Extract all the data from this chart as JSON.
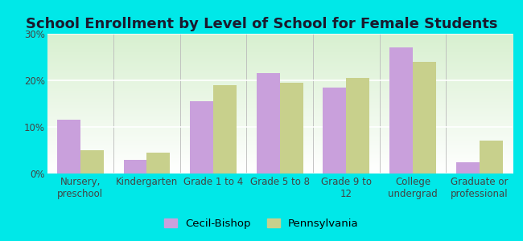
{
  "title": "School Enrollment by Level of School for Female Students",
  "categories": [
    "Nursery,\npreschool",
    "Kindergarten",
    "Grade 1 to 4",
    "Grade 5 to 8",
    "Grade 9 to\n12",
    "College\nundergrad",
    "Graduate or\nprofessional"
  ],
  "cecil_bishop": [
    11.5,
    3.0,
    15.5,
    21.5,
    18.5,
    27.0,
    2.5
  ],
  "pennsylvania": [
    5.0,
    4.5,
    19.0,
    19.5,
    20.5,
    24.0,
    7.0
  ],
  "cecil_color": "#c9a0dc",
  "penn_color": "#c8d08c",
  "background_outer": "#00e8e8",
  "background_inner": "#e8f5e8",
  "ylim": [
    0,
    30
  ],
  "yticks": [
    0,
    10,
    20,
    30
  ],
  "ytick_labels": [
    "0%",
    "10%",
    "20%",
    "30%"
  ],
  "legend_labels": [
    "Cecil-Bishop",
    "Pennsylvania"
  ],
  "bar_width": 0.35,
  "title_fontsize": 13,
  "tick_fontsize": 8.5,
  "legend_fontsize": 9.5,
  "title_color": "#1a1a2e",
  "tick_color": "#444444"
}
